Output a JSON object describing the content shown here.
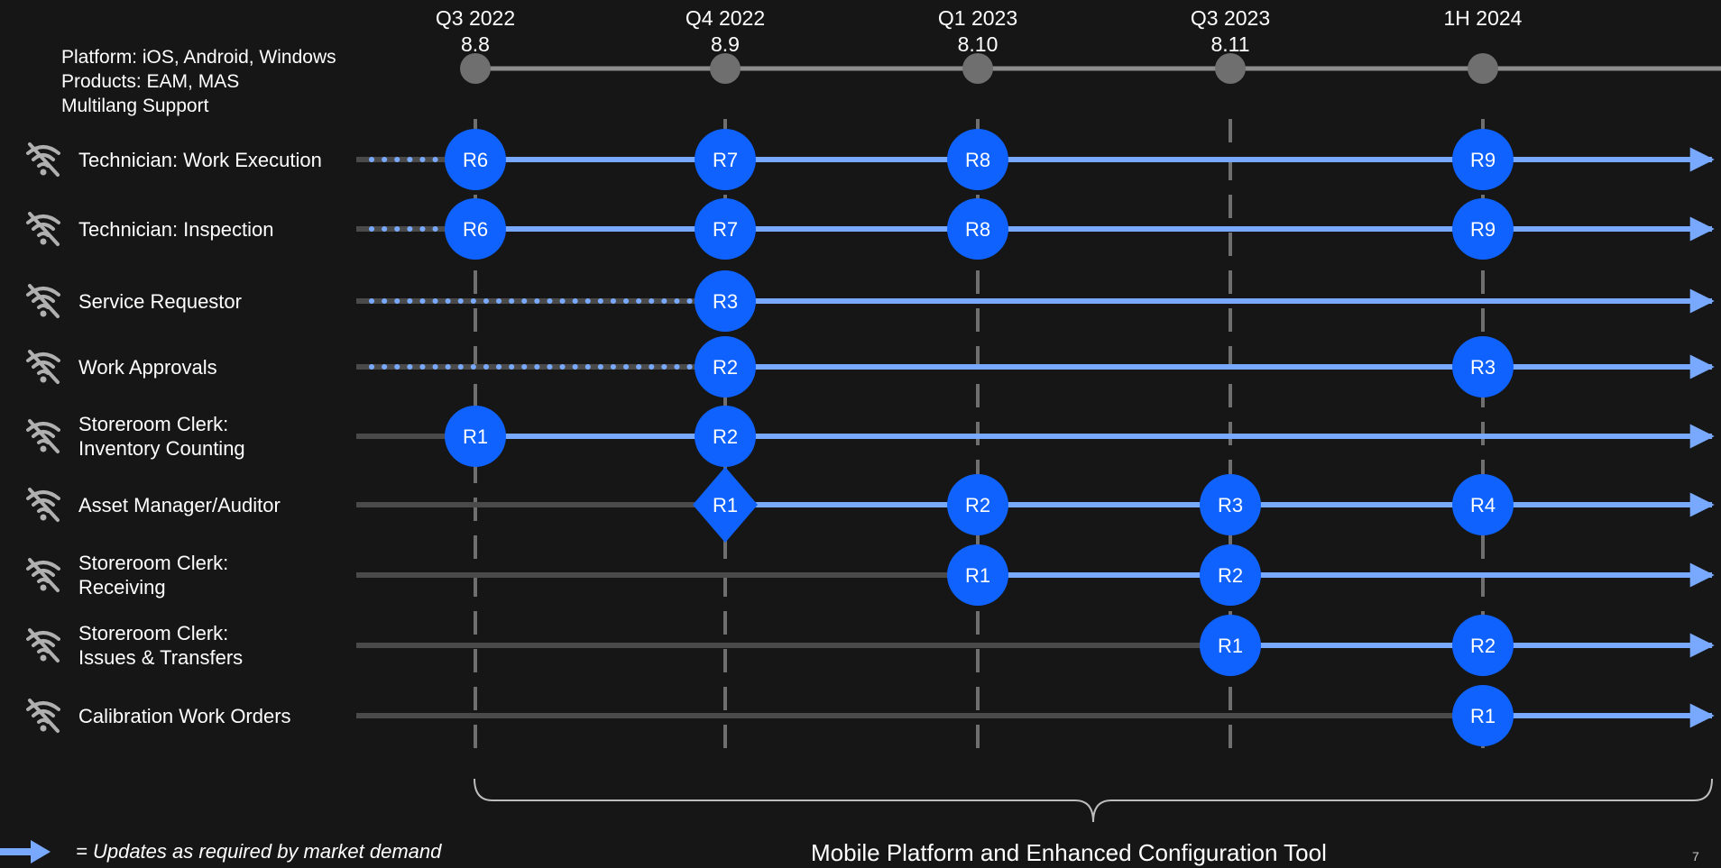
{
  "platform_info": {
    "platform": "Platform:  iOS, Android, Windows",
    "products": "Products:  EAM, MAS",
    "multilang": "Multilang Support"
  },
  "milestones": [
    {
      "id": "m1",
      "period": "Q3 2022",
      "version": "8.8"
    },
    {
      "id": "m2",
      "period": "Q4 2022",
      "version": "8.9"
    },
    {
      "id": "m3",
      "period": "Q1 2023",
      "version": "8.10"
    },
    {
      "id": "m4",
      "period": "Q3 2023",
      "version": "8.11"
    },
    {
      "id": "m5",
      "period": "1H  2024",
      "version": ""
    }
  ],
  "tracks": [
    {
      "lines": [
        "Technician: Work Execution"
      ],
      "dotted_until": "m1",
      "active_from": "m1",
      "releases": [
        {
          "at": "m1",
          "label": "R6"
        },
        {
          "at": "m2",
          "label": "R7"
        },
        {
          "at": "m3",
          "label": "R8"
        },
        {
          "at": "m5",
          "label": "R9"
        }
      ]
    },
    {
      "lines": [
        "Technician: Inspection"
      ],
      "dotted_until": "m1",
      "active_from": "m1",
      "releases": [
        {
          "at": "m1",
          "label": "R6"
        },
        {
          "at": "m2",
          "label": "R7"
        },
        {
          "at": "m3",
          "label": "R8"
        },
        {
          "at": "m5",
          "label": "R9"
        }
      ]
    },
    {
      "lines": [
        "Service Requestor"
      ],
      "dotted_until": "m2",
      "active_from": "m2",
      "releases": [
        {
          "at": "m2",
          "label": "R3"
        }
      ]
    },
    {
      "lines": [
        "Work Approvals"
      ],
      "dotted_until": "m2",
      "active_from": "m2",
      "releases": [
        {
          "at": "m2",
          "label": "R2"
        },
        {
          "at": "m5",
          "label": "R3"
        }
      ]
    },
    {
      "lines": [
        "Storeroom Clerk:",
        "Inventory Counting"
      ],
      "dotted_until": null,
      "active_from": "m1",
      "releases": [
        {
          "at": "m1",
          "label": "R1"
        },
        {
          "at": "m2",
          "label": "R2"
        }
      ]
    },
    {
      "lines": [
        "Asset Manager/Auditor"
      ],
      "dotted_until": null,
      "active_from": "m2",
      "releases": [
        {
          "at": "m2",
          "label": "R1",
          "shape": "diamond"
        },
        {
          "at": "m3",
          "label": "R2"
        },
        {
          "at": "m4",
          "label": "R3"
        },
        {
          "at": "m5",
          "label": "R4"
        }
      ]
    },
    {
      "lines": [
        "Storeroom Clerk:",
        "Receiving"
      ],
      "dotted_until": null,
      "active_from": "m3",
      "releases": [
        {
          "at": "m3",
          "label": "R1"
        },
        {
          "at": "m4",
          "label": "R2"
        }
      ]
    },
    {
      "lines": [
        "Storeroom Clerk:",
        "Issues & Transfers"
      ],
      "dotted_until": null,
      "active_from": "m4",
      "releases": [
        {
          "at": "m4",
          "label": "R1"
        },
        {
          "at": "m5",
          "label": "R2"
        }
      ]
    },
    {
      "lines": [
        "Calibration Work Orders"
      ],
      "dotted_until": null,
      "active_from": "m5",
      "releases": [
        {
          "at": "m5",
          "label": "R1"
        }
      ]
    }
  ],
  "icons": {
    "track": "wifi-off-icon",
    "legend": "arrow-right-icon"
  },
  "colors": {
    "background": "#161616",
    "release": "#0f62fe",
    "active_line": "#78a9ff",
    "inactive_line": "#4a4a4a",
    "milestone": "#6f6f6f",
    "guide": "#6f6f6f"
  },
  "legend": {
    "text": "= Updates as required by market demand"
  },
  "footer": {
    "title": "Mobile Platform and Enhanced Configuration Tool",
    "page_number": "7"
  }
}
